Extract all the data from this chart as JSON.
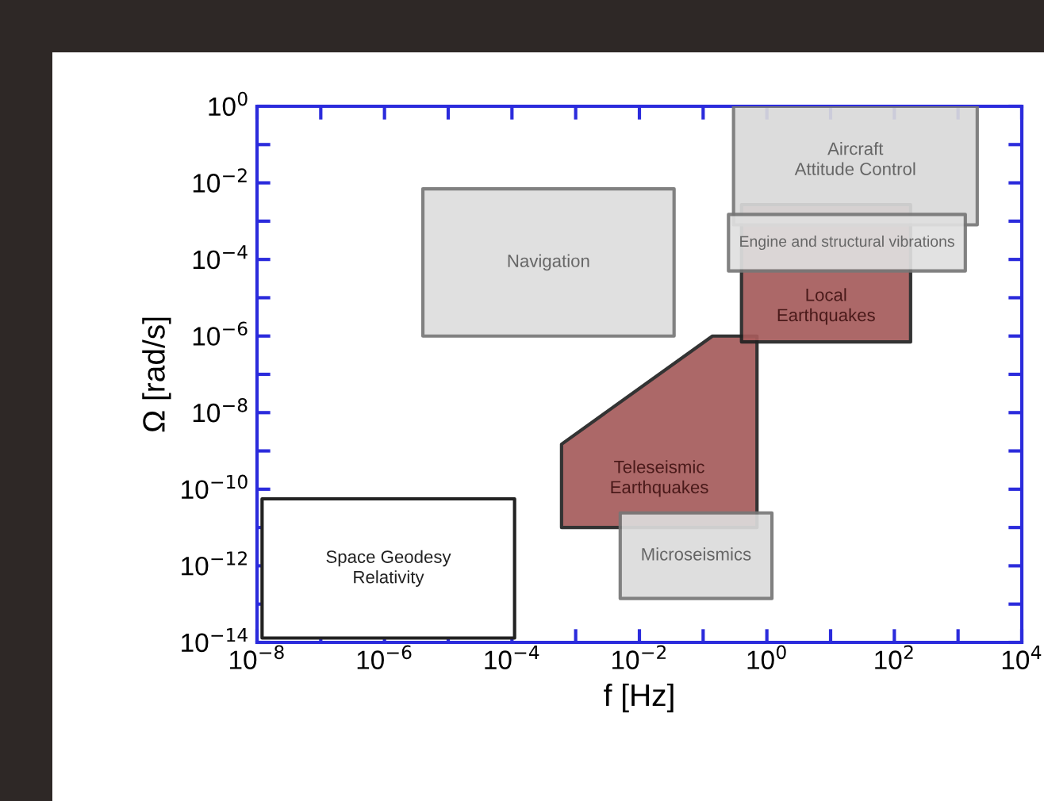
{
  "chart_data": {
    "type": "area",
    "xlabel": "f [Hz]",
    "ylabel": "Ω [rad/s]",
    "log": "xy",
    "xlim": [
      1e-08,
      10000
    ],
    "ylim": [
      1e-14,
      1
    ],
    "xticks": [
      {
        "value": 1e-08,
        "label": "10$^{−8}$"
      },
      {
        "value": 1e-07,
        "label": null
      },
      {
        "value": 1e-06,
        "label": "10$^{−6}$"
      },
      {
        "value": 1e-05,
        "label": null
      },
      {
        "value": 0.0001,
        "label": "10$^{−4}$"
      },
      {
        "value": 0.001,
        "label": null
      },
      {
        "value": 0.01,
        "label": "10$^{−2}$"
      },
      {
        "value": 0.1,
        "label": null
      },
      {
        "value": 1,
        "label": "10$^{0}$"
      },
      {
        "value": 10,
        "label": null
      },
      {
        "value": 100,
        "label": "10$^{2}$"
      },
      {
        "value": 1000,
        "label": null
      },
      {
        "value": 10000,
        "label": "10$^{4}$"
      }
    ],
    "yticks": [
      {
        "value": 1e-14,
        "label": "10$^{−14}$"
      },
      {
        "value": 1e-13,
        "label": null
      },
      {
        "value": 1e-12,
        "label": "10$^{−12}$"
      },
      {
        "value": 1e-11,
        "label": null
      },
      {
        "value": 1e-10,
        "label": "10$^{−10}$"
      },
      {
        "value": 1e-09,
        "label": null
      },
      {
        "value": 1e-08,
        "label": "10$^{−8}$"
      },
      {
        "value": 1e-07,
        "label": null
      },
      {
        "value": 1e-06,
        "label": "10$^{−6}$"
      },
      {
        "value": 1e-05,
        "label": null
      },
      {
        "value": 0.0001,
        "label": "10$^{−4}$"
      },
      {
        "value": 0.001,
        "label": null
      },
      {
        "value": 0.01,
        "label": "10$^{−2}$"
      },
      {
        "value": 0.1,
        "label": null
      },
      {
        "value": 1,
        "label": "10$^{0}$"
      }
    ],
    "grid": false,
    "legend": false,
    "series": [
      {
        "name": "Space Geodesy\nRelativity",
        "color": "#ffffff",
        "x": [
          1.2e-08,
          0.00011,
          0.00011,
          1.2e-08
        ],
        "values": [
          1.3e-14,
          1.3e-14,
          5.6e-11,
          5.6e-11
        ]
      },
      {
        "name": "Navigation",
        "color": "#dedede",
        "x": [
          4e-06,
          0.035,
          0.035,
          4e-06
        ],
        "values": [
          1e-06,
          1e-06,
          0.007,
          0.007
        ]
      },
      {
        "name": "Teleseismic\nEarthquakes",
        "color": "#a65c5c",
        "x": [
          0.0006,
          0.7,
          0.7,
          0.14,
          0.0006
        ],
        "values": [
          1e-11,
          1e-11,
          1e-06,
          1e-06,
          1.5e-09
        ]
      },
      {
        "name": "Microseismics",
        "color": "#dcdcdc",
        "x": [
          0.005,
          1.2,
          1.2,
          0.005
        ],
        "values": [
          1.4e-13,
          1.4e-13,
          2.4e-11,
          2.4e-11
        ]
      },
      {
        "name": "Local\nEarthquakes",
        "color": "#a65c5c",
        "x": [
          0.4,
          180,
          180,
          0.4
        ],
        "values": [
          7e-07,
          7e-07,
          0.0027,
          0.0027
        ]
      },
      {
        "name": "Aircraft\nAttitude Control",
        "color": "#dadada",
        "x": [
          0.3,
          2000,
          2000,
          0.3
        ],
        "values": [
          0.0008,
          0.0008,
          1,
          1
        ]
      },
      {
        "name": "Engine and structural vibrations",
        "color": "#e0e0e0",
        "x": [
          0.25,
          1300,
          1300,
          0.25
        ],
        "values": [
          5e-05,
          5e-05,
          0.0015,
          0.0015
        ]
      }
    ]
  }
}
